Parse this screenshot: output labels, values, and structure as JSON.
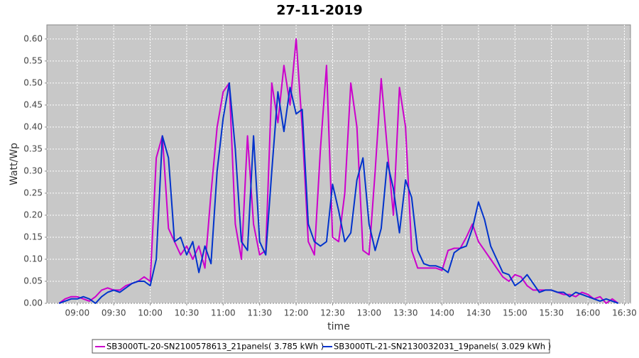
{
  "chart_data": {
    "type": "line",
    "title": "27-11-2019",
    "xlabel": "time",
    "ylabel": "Watt/Wp",
    "x": [
      525,
      530,
      535,
      540,
      545,
      550,
      555,
      560,
      565,
      570,
      575,
      580,
      585,
      590,
      595,
      600,
      605,
      610,
      615,
      620,
      625,
      630,
      635,
      640,
      645,
      650,
      655,
      660,
      665,
      670,
      675,
      680,
      685,
      690,
      695,
      700,
      705,
      710,
      715,
      720,
      725,
      730,
      735,
      740,
      745,
      750,
      755,
      760,
      765,
      770,
      775,
      780,
      785,
      790,
      795,
      800,
      805,
      810,
      815,
      820,
      825,
      830,
      835,
      840,
      845,
      850,
      855,
      860,
      865,
      870,
      875,
      880,
      885,
      890,
      895,
      900,
      905,
      910,
      915,
      920,
      925,
      930,
      935,
      940,
      945,
      950,
      955,
      960,
      965,
      970,
      975,
      980,
      985
    ],
    "series": [
      {
        "name": "SB3000TL-20-SN2100578613_21panels( 3.785 kWh )",
        "color": "#cc00cc",
        "values": [
          0,
          0.01,
          0.015,
          0.015,
          0.01,
          0.005,
          0.015,
          0.03,
          0.035,
          0.03,
          0.03,
          0.04,
          0.045,
          0.05,
          0.06,
          0.05,
          0.33,
          0.38,
          0.17,
          0.14,
          0.11,
          0.13,
          0.1,
          0.13,
          0.08,
          0.25,
          0.4,
          0.48,
          0.5,
          0.18,
          0.1,
          0.38,
          0.18,
          0.11,
          0.12,
          0.5,
          0.41,
          0.54,
          0.45,
          0.6,
          0.4,
          0.14,
          0.11,
          0.35,
          0.54,
          0.15,
          0.14,
          0.25,
          0.5,
          0.4,
          0.12,
          0.11,
          0.3,
          0.51,
          0.35,
          0.2,
          0.49,
          0.4,
          0.12,
          0.08,
          0.08,
          0.08,
          0.08,
          0.075,
          0.12,
          0.125,
          0.125,
          0.15,
          0.18,
          0.14,
          0.12,
          0.1,
          0.08,
          0.06,
          0.05,
          0.065,
          0.06,
          0.04,
          0.03,
          0.03,
          0.03,
          0.03,
          0.025,
          0.02,
          0.02,
          0.015,
          0.025,
          0.02,
          0.01,
          0.015,
          0,
          0.01,
          0
        ]
      },
      {
        "name": "SB3000TL-21-SN2130032031_19panels( 3.029 kWh )",
        "color": "#0033cc",
        "values": [
          0,
          0.005,
          0.01,
          0.01,
          0.015,
          0.01,
          0,
          0.015,
          0.025,
          0.03,
          0.025,
          0.035,
          0.045,
          0.05,
          0.05,
          0.04,
          0.1,
          0.38,
          0.33,
          0.14,
          0.15,
          0.11,
          0.14,
          0.07,
          0.13,
          0.09,
          0.3,
          0.42,
          0.5,
          0.35,
          0.14,
          0.12,
          0.38,
          0.14,
          0.11,
          0.3,
          0.48,
          0.39,
          0.49,
          0.43,
          0.44,
          0.18,
          0.14,
          0.13,
          0.14,
          0.27,
          0.21,
          0.14,
          0.16,
          0.28,
          0.33,
          0.18,
          0.12,
          0.17,
          0.32,
          0.26,
          0.16,
          0.28,
          0.24,
          0.12,
          0.09,
          0.085,
          0.085,
          0.08,
          0.07,
          0.115,
          0.125,
          0.13,
          0.17,
          0.23,
          0.19,
          0.13,
          0.1,
          0.07,
          0.065,
          0.04,
          0.05,
          0.065,
          0.045,
          0.025,
          0.03,
          0.03,
          0.025,
          0.025,
          0.015,
          0.025,
          0.02,
          0.015,
          0.01,
          0.005,
          0.01,
          0.005,
          0
        ]
      }
    ],
    "xlim": [
      515,
      995
    ],
    "xticks": [
      {
        "value": 540,
        "label": "09:00"
      },
      {
        "value": 570,
        "label": "09:30"
      },
      {
        "value": 600,
        "label": "10:00"
      },
      {
        "value": 630,
        "label": "10:30"
      },
      {
        "value": 660,
        "label": "11:00"
      },
      {
        "value": 690,
        "label": "11:30"
      },
      {
        "value": 720,
        "label": "12:00"
      },
      {
        "value": 750,
        "label": "12:30"
      },
      {
        "value": 780,
        "label": "13:00"
      },
      {
        "value": 810,
        "label": "13:30"
      },
      {
        "value": 840,
        "label": "14:00"
      },
      {
        "value": 870,
        "label": "14:30"
      },
      {
        "value": 900,
        "label": "15:00"
      },
      {
        "value": 930,
        "label": "15:30"
      },
      {
        "value": 960,
        "label": "16:00"
      },
      {
        "value": 990,
        "label": "16:30"
      }
    ],
    "ylim": [
      0,
      0.632
    ],
    "yticks": [
      {
        "value": 0,
        "label": "0.00"
      },
      {
        "value": 0.05,
        "label": "0.05"
      },
      {
        "value": 0.1,
        "label": "0.10"
      },
      {
        "value": 0.15,
        "label": "0.15"
      },
      {
        "value": 0.2,
        "label": "0.20"
      },
      {
        "value": 0.25,
        "label": "0.25"
      },
      {
        "value": 0.3,
        "label": "0.30"
      },
      {
        "value": 0.35,
        "label": "0.35"
      },
      {
        "value": 0.4,
        "label": "0.40"
      },
      {
        "value": 0.45,
        "label": "0.45"
      },
      {
        "value": 0.5,
        "label": "0.50"
      },
      {
        "value": 0.55,
        "label": "0.55"
      },
      {
        "value": 0.6,
        "label": "0.60"
      }
    ],
    "grid": true,
    "legend": "bottom"
  }
}
